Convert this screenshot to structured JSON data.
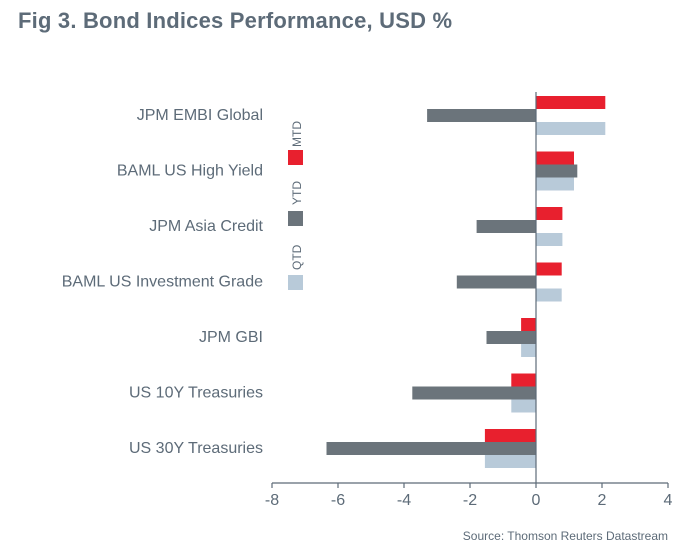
{
  "title": "Fig 3. Bond Indices Performance, USD %",
  "source": "Source: Thomson Reuters Datastream",
  "chart_data": {
    "type": "bar",
    "orientation": "horizontal",
    "categories": [
      "JPM EMBI Global",
      "BAML US High Yield",
      "JPM Asia Credit",
      "BAML US Investment Grade",
      "JPM GBI",
      "US 10Y Treasuries",
      "US 30Y Treasuries"
    ],
    "series": [
      {
        "name": "MTD",
        "color": "#e8202e",
        "values": [
          2.1,
          1.15,
          0.8,
          0.78,
          -0.45,
          -0.75,
          -1.55
        ]
      },
      {
        "name": "YTD",
        "color": "#6b747b",
        "values": [
          -3.3,
          1.25,
          -1.8,
          -2.4,
          -1.5,
          -3.75,
          -6.35
        ]
      },
      {
        "name": "QTD",
        "color": "#b8cad9",
        "values": [
          2.1,
          1.15,
          0.8,
          0.78,
          -0.45,
          -0.75,
          -1.55
        ]
      }
    ],
    "xlim": [
      -8,
      4
    ],
    "xticks": [
      "-8",
      "-6",
      "-4",
      "-2",
      "0",
      "2",
      "4"
    ],
    "legend_position": "left, vertical"
  }
}
